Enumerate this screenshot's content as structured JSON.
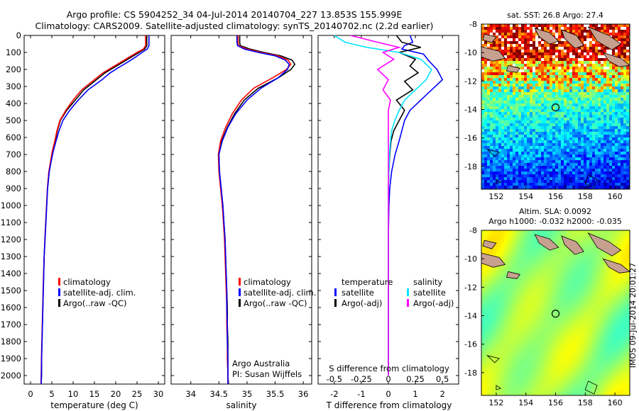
{
  "header": {
    "line1": "Argo profile: CS 5904252_34 04-Jul-2014 20140704_227 13.853S 155.999E",
    "line2": "Climatology: CARS2009. Satellite-adjusted climatology: synTS_20140702.nc (2.2d earlier)"
  },
  "colors": {
    "climatology": "#ff0000",
    "satellite": "#0000ff",
    "argo": "#000000",
    "sat_salinity": "#00e5ff",
    "argo_salinity": "#ff00ff"
  },
  "side_note": "IMOS 09-Jul-2014 20:01:27",
  "credit": {
    "line1": "Argo Australia",
    "line2": "PI: Susan Wijffels"
  },
  "chart_data": [
    {
      "id": "temperature",
      "type": "line",
      "xlabel": "temperature (deg C)",
      "ylabel": "",
      "xlim": [
        -1.5,
        31.5
      ],
      "ylim": [
        2050,
        0
      ],
      "xticks": [
        "0",
        "5",
        "10",
        "15",
        "20",
        "25",
        "30"
      ],
      "xtick_values": [
        0,
        5,
        10,
        15,
        20,
        25,
        30
      ],
      "yticks": [
        "0",
        "100",
        "200",
        "300",
        "400",
        "500",
        "600",
        "700",
        "800",
        "900",
        "1000",
        "1100",
        "1200",
        "1300",
        "1400",
        "1500",
        "1600",
        "1700",
        "1800",
        "1900",
        "2000"
      ],
      "ytick_values": [
        0,
        100,
        200,
        300,
        400,
        500,
        600,
        700,
        800,
        900,
        1000,
        1100,
        1200,
        1300,
        1400,
        1500,
        1600,
        1700,
        1800,
        1900,
        2000
      ],
      "legend": [
        {
          "label": "climatology",
          "color": "#ff0000"
        },
        {
          "label": "satellite-adj. clim.",
          "color": "#0000ff"
        },
        {
          "label": "Argo(..raw -QC)",
          "color": "#000000"
        }
      ],
      "series": [
        {
          "name": "Argo",
          "color": "#000000",
          "x": [
            27.3,
            27.3,
            26.8,
            25.5,
            23.5,
            21.5,
            19.5,
            17.5,
            15.5,
            12.5,
            10.5,
            8.5,
            7.0,
            6.3,
            5.8,
            5.2,
            4.8,
            4.4,
            4.0,
            3.8,
            3.6,
            3.4,
            3.2,
            3.1,
            3.0,
            2.9,
            2.8,
            2.7,
            2.6,
            2.6,
            2.5
          ],
          "depth": [
            0,
            60,
            80,
            100,
            130,
            160,
            190,
            220,
            260,
            320,
            380,
            440,
            500,
            560,
            620,
            680,
            740,
            800,
            900,
            1000,
            1100,
            1200,
            1300,
            1400,
            1500,
            1600,
            1700,
            1800,
            1900,
            2000,
            2050
          ]
        },
        {
          "name": "climatology",
          "color": "#ff0000",
          "x": [
            27.0,
            27.0,
            26.5,
            25.0,
            23.0,
            21.0,
            19.0,
            17.0,
            15.0,
            12.0,
            10.0,
            8.3,
            6.9,
            6.2,
            5.7,
            5.1,
            4.7,
            4.3,
            3.95,
            3.75,
            3.55,
            3.35,
            3.2,
            3.05,
            2.95,
            2.85,
            2.75,
            2.65,
            2.55,
            2.5,
            2.45
          ],
          "depth": [
            0,
            60,
            80,
            100,
            130,
            160,
            190,
            220,
            260,
            320,
            380,
            440,
            500,
            560,
            620,
            680,
            740,
            800,
            900,
            1000,
            1100,
            1200,
            1300,
            1400,
            1500,
            1600,
            1700,
            1800,
            1900,
            2000,
            2050
          ]
        },
        {
          "name": "satellite-adj. clim.",
          "color": "#0000ff",
          "x": [
            27.8,
            27.8,
            27.4,
            26.2,
            24.5,
            22.6,
            20.6,
            18.7,
            16.8,
            13.5,
            11.2,
            9.2,
            7.6,
            6.7,
            6.0,
            5.35,
            4.85,
            4.4,
            4.0,
            3.8,
            3.6,
            3.4,
            3.2,
            3.1,
            3.0,
            2.9,
            2.8,
            2.7,
            2.6,
            2.55,
            2.5
          ],
          "depth": [
            0,
            60,
            80,
            100,
            130,
            160,
            190,
            220,
            260,
            320,
            380,
            440,
            500,
            560,
            620,
            680,
            740,
            800,
            900,
            1000,
            1100,
            1200,
            1300,
            1400,
            1500,
            1600,
            1700,
            1800,
            1900,
            2000,
            2050
          ]
        }
      ]
    },
    {
      "id": "salinity",
      "type": "line",
      "xlabel": "salinity",
      "ylabel": "",
      "xlim": [
        33.65,
        36.15
      ],
      "ylim": [
        2050,
        0
      ],
      "xticks": [
        "34",
        "34.5",
        "35",
        "35.5",
        "36"
      ],
      "xtick_values": [
        34,
        34.5,
        35,
        35.5,
        36
      ],
      "legend": [
        {
          "label": "climatology",
          "color": "#ff0000"
        },
        {
          "label": "satellite-adj. clim.",
          "color": "#0000ff"
        },
        {
          "label": "Argo(..raw -QC)",
          "color": "#000000"
        }
      ],
      "series": [
        {
          "name": "Argo",
          "color": "#000000",
          "x": [
            34.87,
            34.87,
            34.88,
            35.05,
            35.3,
            35.6,
            35.8,
            35.85,
            35.78,
            35.55,
            35.2,
            34.95,
            34.78,
            34.65,
            34.55,
            34.5,
            34.51,
            34.54,
            34.57,
            34.59,
            34.61,
            34.62,
            34.63,
            34.64,
            34.65,
            34.65,
            34.66,
            34.66,
            34.66,
            34.67
          ],
          "depth": [
            0,
            40,
            60,
            80,
            100,
            120,
            145,
            170,
            200,
            250,
            310,
            380,
            460,
            540,
            620,
            700,
            800,
            900,
            1000,
            1100,
            1200,
            1300,
            1400,
            1500,
            1600,
            1700,
            1800,
            1900,
            2000,
            2050
          ]
        },
        {
          "name": "climatology",
          "color": "#ff0000",
          "x": [
            34.84,
            34.84,
            34.85,
            35.0,
            35.25,
            35.55,
            35.73,
            35.78,
            35.7,
            35.45,
            35.12,
            34.9,
            34.74,
            34.62,
            34.53,
            34.49,
            34.5,
            34.53,
            34.56,
            34.58,
            34.6,
            34.61,
            34.62,
            34.63,
            34.64,
            34.64,
            34.65,
            34.65,
            34.66,
            34.66
          ],
          "depth": [
            0,
            40,
            60,
            80,
            100,
            120,
            145,
            170,
            200,
            250,
            310,
            380,
            460,
            540,
            620,
            700,
            800,
            900,
            1000,
            1100,
            1200,
            1300,
            1400,
            1500,
            1600,
            1700,
            1800,
            1900,
            2000,
            2050
          ]
        },
        {
          "name": "satellite-adj. clim.",
          "color": "#0000ff",
          "x": [
            34.82,
            34.82,
            34.83,
            34.95,
            35.2,
            35.5,
            35.68,
            35.75,
            35.72,
            35.55,
            35.25,
            35.0,
            34.8,
            34.66,
            34.56,
            34.5,
            34.51,
            34.54,
            34.57,
            34.59,
            34.61,
            34.62,
            34.63,
            34.64,
            34.64,
            34.65,
            34.65,
            34.66,
            34.66,
            34.66
          ],
          "depth": [
            0,
            40,
            60,
            80,
            100,
            120,
            145,
            170,
            200,
            250,
            310,
            380,
            460,
            540,
            620,
            700,
            800,
            900,
            1000,
            1100,
            1200,
            1300,
            1400,
            1500,
            1600,
            1700,
            1800,
            1900,
            2000,
            2050
          ]
        }
      ]
    },
    {
      "id": "difference",
      "type": "line",
      "xlabel": "T difference from climatology",
      "top_label": "S difference from climatology",
      "xlim": [
        -2.6,
        2.6
      ],
      "ylim": [
        2050,
        0
      ],
      "xticks": [
        "-2",
        "-1",
        "0",
        "1",
        "2"
      ],
      "xtick_values": [
        -2,
        -1,
        0,
        1,
        2
      ],
      "sticks": [
        "-0.5",
        "-0.25",
        "0",
        "0.25",
        "0.5"
      ],
      "stick_values": [
        -0.5,
        -0.25,
        0,
        0.25,
        0.5
      ],
      "legend_temperature": {
        "heading": "temperature",
        "items": [
          {
            "label": "satellite",
            "color": "#0000ff"
          },
          {
            "label": "Argo(-adj)",
            "color": "#000000"
          }
        ]
      },
      "legend_salinity": {
        "heading": "salinity",
        "items": [
          {
            "label": "satellite",
            "color": "#00e5ff"
          },
          {
            "label": "Argo(-adj)",
            "color": "#ff00ff"
          }
        ]
      },
      "series": [
        {
          "name": "T satellite",
          "color": "#0000ff",
          "x": [
            0.8,
            0.9,
            0.6,
            0.5,
            1.3,
            1.5,
            1.8,
            2.0,
            1.6,
            1.2,
            0.8,
            0.6,
            0.5,
            0.4,
            0.25,
            0.12,
            0.05,
            0.02,
            0.0,
            0.0,
            0.0,
            0.0,
            0.0
          ],
          "depth": [
            0,
            40,
            60,
            80,
            110,
            150,
            200,
            260,
            320,
            380,
            440,
            500,
            560,
            620,
            700,
            800,
            900,
            1000,
            1200,
            1400,
            1600,
            1800,
            2000
          ]
        },
        {
          "name": "T Argo",
          "color": "#000000",
          "x": [
            0.3,
            0.5,
            1.2,
            0.4,
            1.0,
            0.8,
            1.1,
            0.6,
            0.9,
            0.3,
            0.6,
            0.4,
            0.2,
            0.1,
            0.05,
            0.02,
            0.0,
            0.0,
            0.0,
            0.0
          ],
          "depth": [
            0,
            40,
            70,
            100,
            140,
            180,
            220,
            270,
            320,
            380,
            440,
            500,
            560,
            620,
            700,
            800,
            900,
            1000,
            1500,
            2000
          ]
        },
        {
          "name": "S satellite",
          "color": "#00e5ff",
          "x": [
            -0.5,
            -0.4,
            -0.2,
            0.1,
            0.3,
            0.4,
            0.35,
            0.25,
            0.15,
            0.1,
            0.06,
            0.03,
            0.02,
            0.01,
            0.0,
            0.0,
            0.0
          ],
          "depth": [
            0,
            40,
            70,
            100,
            140,
            200,
            260,
            320,
            380,
            440,
            500,
            560,
            620,
            700,
            900,
            1400,
            2000
          ]
        },
        {
          "name": "S Argo",
          "color": "#ff00ff",
          "x": [
            -0.35,
            -0.1,
            0.1,
            -0.05,
            0.05,
            -0.1,
            0.0,
            -0.05,
            0.02,
            0.0,
            0.0,
            0.0,
            0.0,
            0.0,
            0.0
          ],
          "depth": [
            0,
            40,
            70,
            100,
            140,
            200,
            260,
            320,
            380,
            440,
            500,
            600,
            800,
            1400,
            2000
          ]
        }
      ]
    },
    {
      "id": "sst_map",
      "type": "heatmap",
      "title": "sat. SST: 26.8 Argo: 27.4",
      "xlim": [
        151.0,
        161.0
      ],
      "ylim": [
        -19.6,
        -8.0
      ],
      "xticks": [
        "152",
        "154",
        "156",
        "158",
        "160"
      ],
      "xtick_values": [
        152,
        154,
        156,
        158,
        160
      ],
      "yticks": [
        "-8",
        "-10",
        "-12",
        "-14",
        "-16",
        "-18"
      ],
      "ytick_values": [
        -8,
        -10,
        -12,
        -14,
        -16,
        -18
      ],
      "marker": {
        "lon": 155.999,
        "lat": -13.853
      }
    },
    {
      "id": "sla_map",
      "type": "heatmap",
      "title_line1": "Altim. SLA: 0.0092",
      "title_line2": "Argo h1000: -0.032 h2000: -0.035",
      "xlim": [
        151.0,
        161.0
      ],
      "ylim": [
        -19.6,
        -8.0
      ],
      "xticks": [
        "152",
        "154",
        "156",
        "158",
        "160"
      ],
      "xtick_values": [
        152,
        154,
        156,
        158,
        160
      ],
      "yticks": [
        "-8",
        "-10",
        "-12",
        "-14",
        "-16",
        "-18"
      ],
      "ytick_values": [
        -8,
        -10,
        -12,
        -14,
        -16,
        -18
      ],
      "marker": {
        "lon": 155.999,
        "lat": -13.853
      }
    }
  ]
}
